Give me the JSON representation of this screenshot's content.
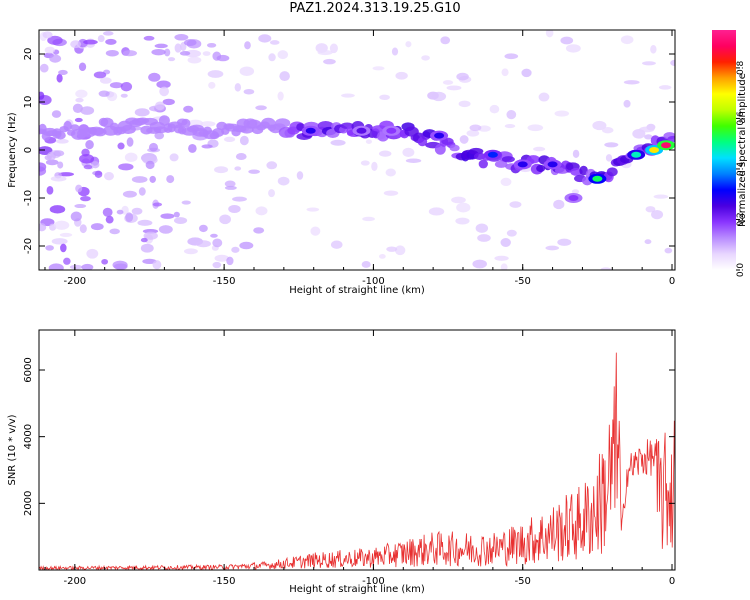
{
  "title": "PAZ1.2024.313.19.25.G10",
  "chart_data": [
    {
      "type": "heatmap",
      "xlabel": "Height of straight line (km)",
      "ylabel": "Frequency (Hz)",
      "xlim": [
        -212,
        1
      ],
      "ylim": [
        -25,
        25
      ],
      "x_ticks": [
        -200,
        -150,
        -100,
        -50,
        0
      ],
      "y_ticks": [
        -20,
        -10,
        0,
        10,
        20
      ],
      "x_tick_labels": [
        "-200",
        "-150",
        "-100",
        "-50",
        "0"
      ],
      "y_tick_labels": [
        "-20",
        "-10",
        "0",
        "10",
        "20"
      ],
      "colorbar": {
        "label": "Normalized spectral amplitude",
        "range": [
          0,
          0.95
        ],
        "ticks": [
          0,
          0.2,
          0.4,
          0.6,
          0.8
        ],
        "tick_labels": [
          "0.0",
          "0.2",
          "0.4",
          "0.6",
          "0.8"
        ],
        "colormap": [
          "#ffffff",
          "#e8d6ff",
          "#b98cff",
          "#8a35ff",
          "#4a00e0",
          "#0000ff",
          "#0080ff",
          "#00e0ff",
          "#00ff80",
          "#40ff00",
          "#c0ff00",
          "#ffff00",
          "#ffa000",
          "#ff2000",
          "#ff0060",
          "#ff2090"
        ]
      },
      "ridge": {
        "description_free": true,
        "points": [
          {
            "x": -200,
            "y": 4
          },
          {
            "x": -185,
            "y": 5
          },
          {
            "x": -165,
            "y": 5
          },
          {
            "x": -150,
            "y": 4
          },
          {
            "x": -135,
            "y": 5
          },
          {
            "x": -125,
            "y": 4
          },
          {
            "x": -110,
            "y": 4
          },
          {
            "x": -100,
            "y": 4
          },
          {
            "x": -90,
            "y": 4
          },
          {
            "x": -80,
            "y": 2
          },
          {
            "x": -70,
            "y": -1
          },
          {
            "x": -60,
            "y": -2
          },
          {
            "x": -50,
            "y": -3
          },
          {
            "x": -40,
            "y": -3
          },
          {
            "x": -32,
            "y": -5
          },
          {
            "x": -26,
            "y": -6
          },
          {
            "x": -20,
            "y": -4
          },
          {
            "x": -12,
            "y": -1
          },
          {
            "x": -5,
            "y": 1
          },
          {
            "x": 0,
            "y": 2
          }
        ]
      },
      "hotspots": [
        {
          "x": -121,
          "y": 4,
          "amp": 0.3
        },
        {
          "x": -104,
          "y": 4,
          "amp": 0.25
        },
        {
          "x": -94,
          "y": 4,
          "amp": 0.2
        },
        {
          "x": -78,
          "y": 3,
          "amp": 0.3
        },
        {
          "x": -60,
          "y": -1,
          "amp": 0.35
        },
        {
          "x": -50,
          "y": -3,
          "amp": 0.3
        },
        {
          "x": -40,
          "y": -3,
          "amp": 0.3
        },
        {
          "x": -25,
          "y": -6,
          "amp": 0.55
        },
        {
          "x": -12,
          "y": -1,
          "amp": 0.5
        },
        {
          "x": -6,
          "y": 0,
          "amp": 0.75
        },
        {
          "x": -2,
          "y": 1,
          "amp": 0.95
        },
        {
          "x": -33,
          "y": -10,
          "amp": 0.2
        }
      ]
    },
    {
      "type": "line",
      "xlabel": "Height of straight line (km)",
      "ylabel": "SNR (10 * v/v)",
      "xlim": [
        -212,
        1
      ],
      "ylim": [
        0,
        7200
      ],
      "x_ticks": [
        -200,
        -150,
        -100,
        -50,
        0
      ],
      "y_ticks": [
        2000,
        4000,
        6000
      ],
      "x_tick_labels": [
        "-200",
        "-150",
        "-100",
        "-50",
        "0"
      ],
      "y_tick_labels": [
        "2000",
        "4000",
        "6000"
      ],
      "color": "#e83030",
      "envelope": {
        "x": [
          -212,
          -150,
          -135,
          -120,
          -100,
          -80,
          -60,
          -50,
          -40,
          -30,
          -25,
          -20,
          -18,
          -17,
          -15,
          -10,
          -5,
          0,
          1
        ],
        "y": [
          100,
          150,
          250,
          500,
          650,
          1100,
          1100,
          1400,
          1900,
          2500,
          3200,
          5000,
          6500,
          1200,
          3300,
          3700,
          3800,
          4100,
          4700
        ]
      }
    }
  ]
}
